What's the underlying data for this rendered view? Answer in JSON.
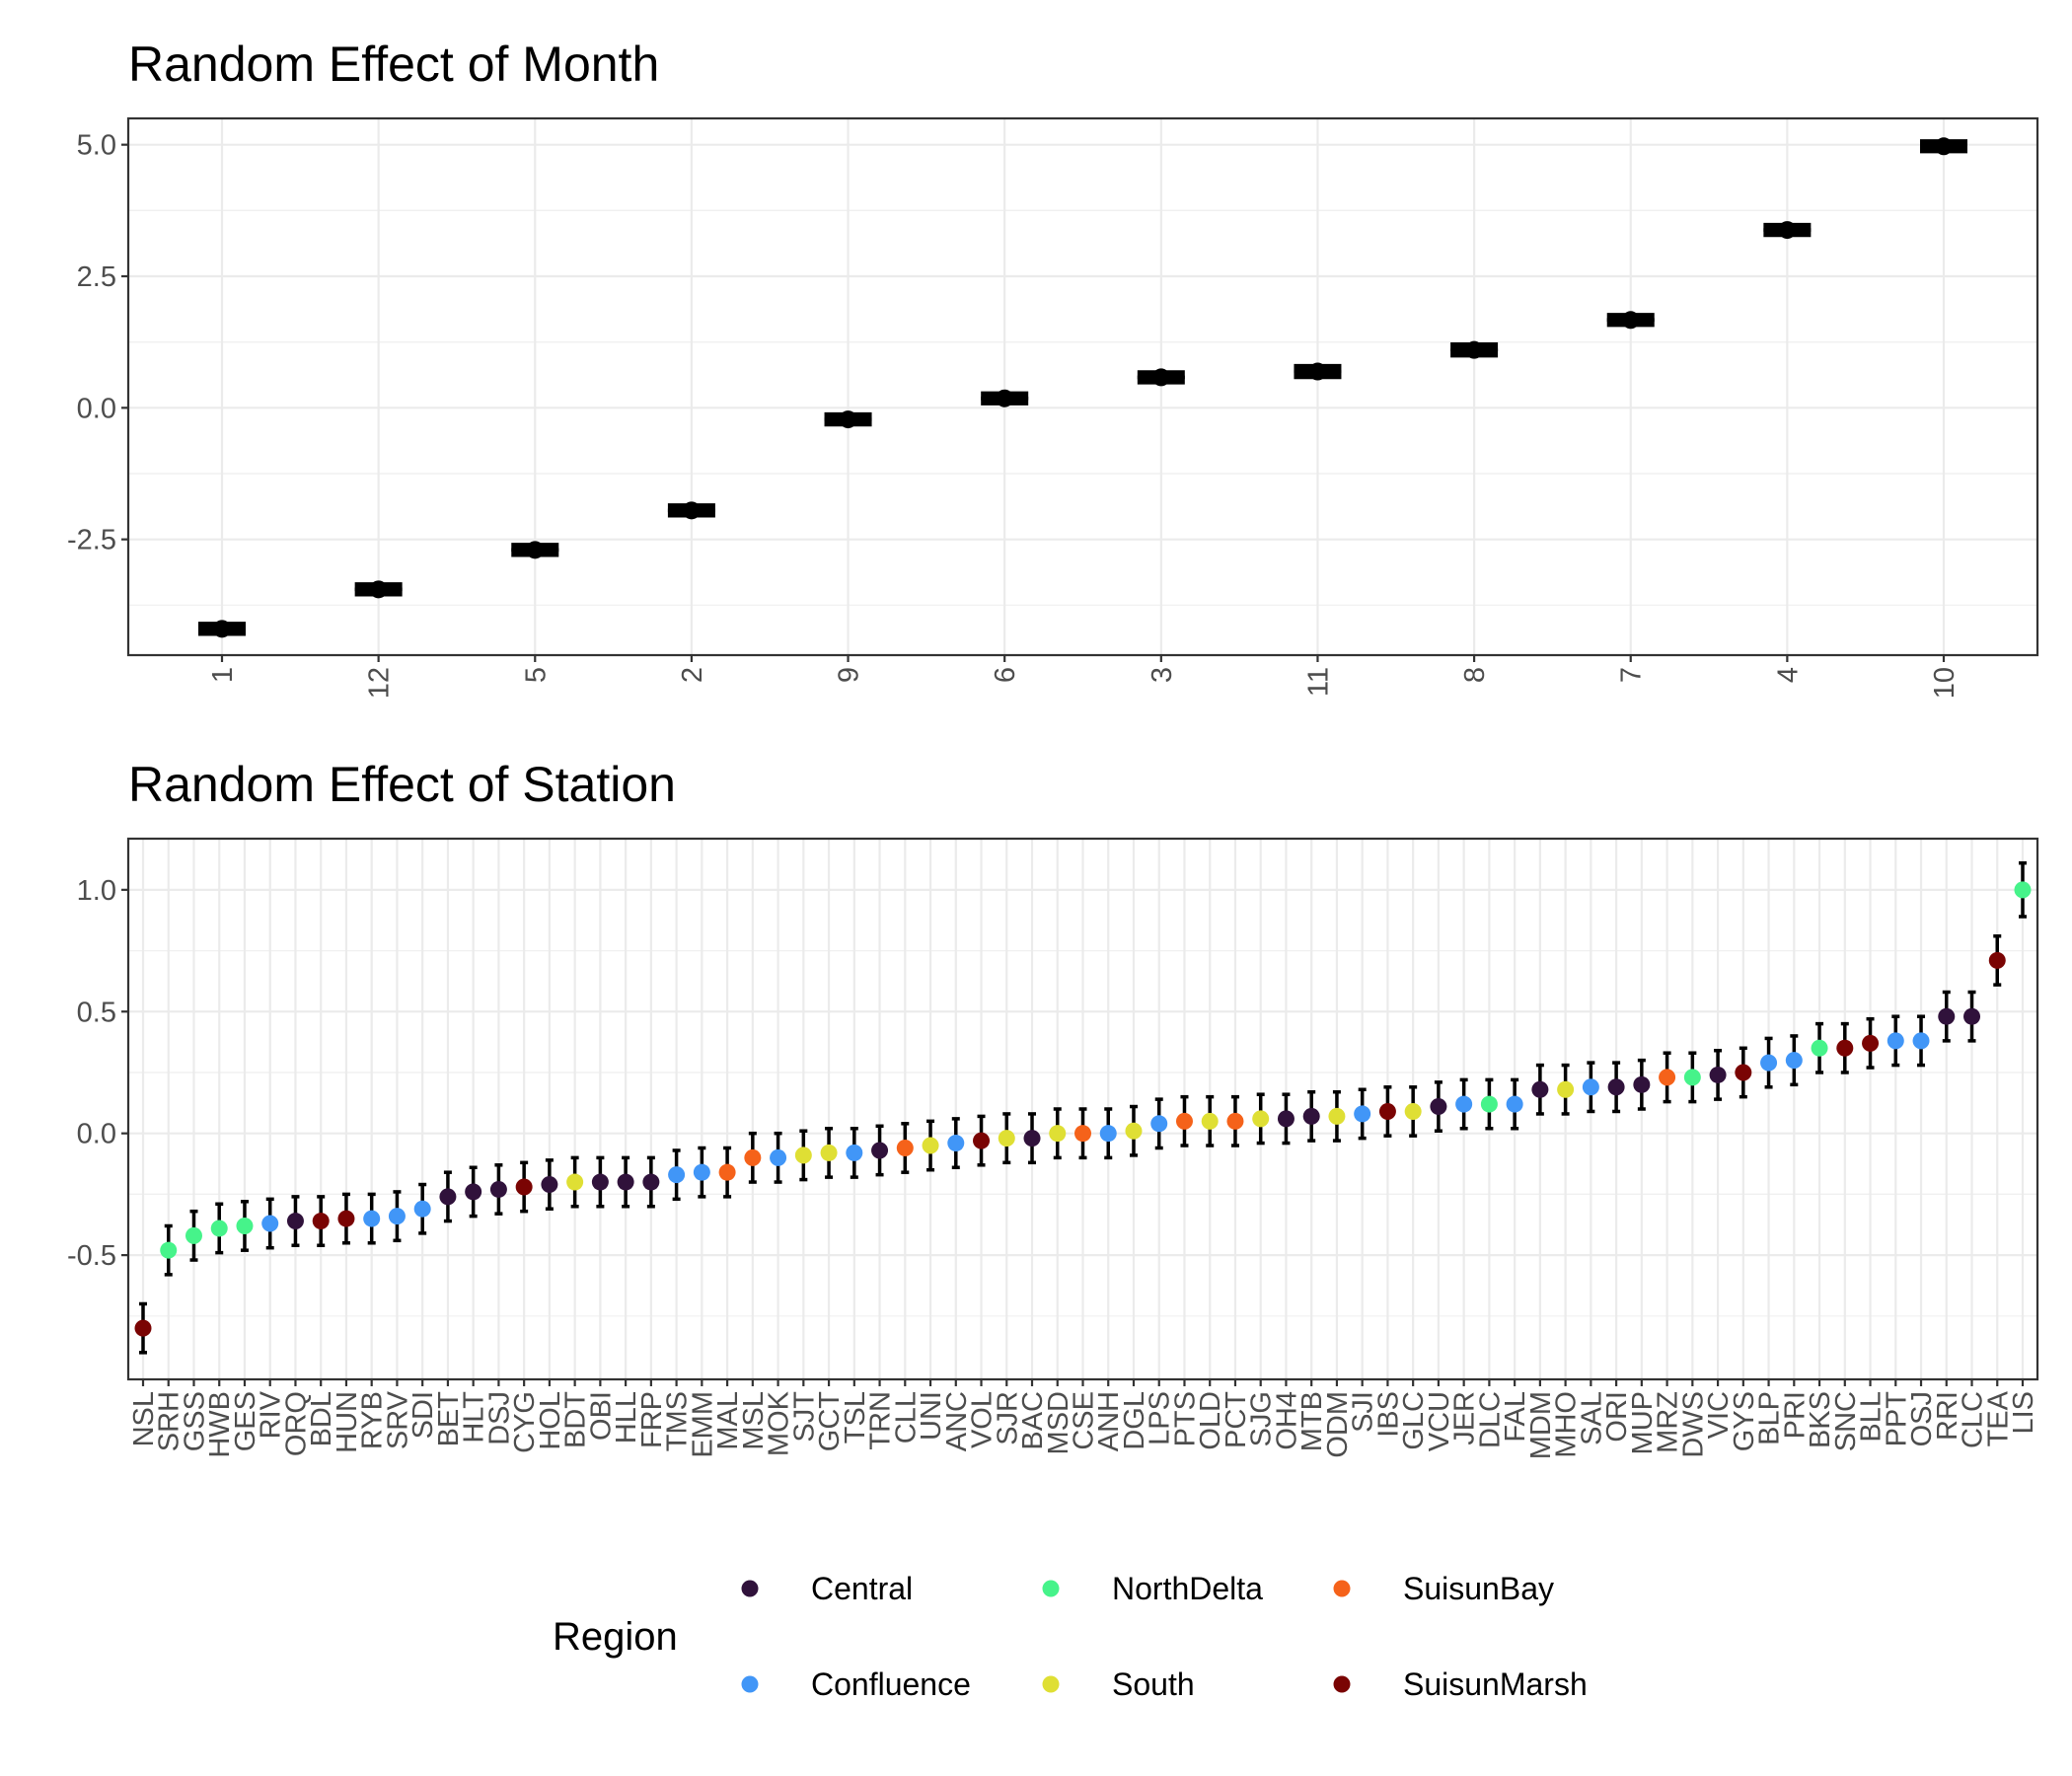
{
  "chart_data": [
    {
      "type": "scatter",
      "title": "Random Effect of Month",
      "xlabel": "",
      "ylabel": "",
      "ylim": [
        -4.7,
        5.5
      ],
      "yticks": [
        -2.5,
        0.0,
        2.5,
        5.0
      ],
      "ytick_labels": [
        "-2.5",
        "0.0",
        "2.5",
        "5.0"
      ],
      "grid": true,
      "categories": [
        "1",
        "12",
        "5",
        "2",
        "9",
        "6",
        "3",
        "11",
        "8",
        "7",
        "4",
        "10"
      ],
      "values": [
        -4.2,
        -3.45,
        -2.7,
        -1.95,
        -0.22,
        0.18,
        0.58,
        0.69,
        1.1,
        1.67,
        3.38,
        4.97
      ],
      "lower": [
        -4.25,
        -3.5,
        -2.75,
        -2.0,
        -0.27,
        0.13,
        0.53,
        0.63,
        1.04,
        1.62,
        3.33,
        4.92
      ],
      "upper": [
        -4.15,
        -3.4,
        -2.65,
        -1.9,
        -0.17,
        0.23,
        0.63,
        0.75,
        1.16,
        1.72,
        3.43,
        5.02
      ],
      "color": "#000000"
    },
    {
      "type": "scatter",
      "title": "Random Effect of Station",
      "xlabel": "",
      "ylabel": "",
      "ylim": [
        -1.01,
        1.21
      ],
      "yticks": [
        -0.5,
        0.0,
        0.5,
        1.0
      ],
      "ytick_labels": [
        "-0.5",
        "0.0",
        "0.5",
        "1.0"
      ],
      "grid": true,
      "categories": [
        "NSL",
        "SRH",
        "GSS",
        "HWB",
        "GES",
        "RIV",
        "ORQ",
        "BDL",
        "HUN",
        "RYB",
        "SRV",
        "SDI",
        "BET",
        "HLT",
        "DSJ",
        "CYG",
        "HOL",
        "BDT",
        "OBI",
        "HLL",
        "FRP",
        "TMS",
        "EMM",
        "MAL",
        "MSL",
        "MOK",
        "SJT",
        "GCT",
        "TSL",
        "TRN",
        "CLL",
        "UNI",
        "ANC",
        "VOL",
        "SJR",
        "BAC",
        "MSD",
        "CSE",
        "ANH",
        "DGL",
        "LPS",
        "PTS",
        "OLD",
        "PCT",
        "SJG",
        "OH4",
        "MTB",
        "ODM",
        "SJI",
        "IBS",
        "GLC",
        "VCU",
        "JER",
        "DLC",
        "FAL",
        "MDM",
        "MHO",
        "SAL",
        "ORI",
        "MUP",
        "MRZ",
        "DWS",
        "VIC",
        "GYS",
        "BLP",
        "PRI",
        "BKS",
        "SNC",
        "BLL",
        "PPT",
        "OSJ",
        "RRI",
        "CLC",
        "TEA",
        "LIS"
      ],
      "values": [
        -0.8,
        -0.48,
        -0.42,
        -0.39,
        -0.38,
        -0.37,
        -0.36,
        -0.36,
        -0.35,
        -0.35,
        -0.34,
        -0.31,
        -0.26,
        -0.24,
        -0.23,
        -0.22,
        -0.21,
        -0.2,
        -0.2,
        -0.2,
        -0.2,
        -0.17,
        -0.16,
        -0.16,
        -0.1,
        -0.1,
        -0.09,
        -0.08,
        -0.08,
        -0.07,
        -0.06,
        -0.05,
        -0.04,
        -0.03,
        -0.02,
        -0.02,
        0.0,
        0.0,
        0.0,
        0.01,
        0.04,
        0.05,
        0.05,
        0.05,
        0.06,
        0.06,
        0.07,
        0.07,
        0.08,
        0.09,
        0.09,
        0.11,
        0.12,
        0.12,
        0.12,
        0.18,
        0.18,
        0.19,
        0.19,
        0.2,
        0.23,
        0.23,
        0.24,
        0.25,
        0.29,
        0.3,
        0.35,
        0.35,
        0.37,
        0.38,
        0.38,
        0.48,
        0.48,
        0.71,
        1.0
      ],
      "lower": [
        -0.9,
        -0.58,
        -0.52,
        -0.49,
        -0.48,
        -0.47,
        -0.46,
        -0.46,
        -0.45,
        -0.45,
        -0.44,
        -0.41,
        -0.36,
        -0.34,
        -0.33,
        -0.32,
        -0.31,
        -0.3,
        -0.3,
        -0.3,
        -0.3,
        -0.27,
        -0.26,
        -0.26,
        -0.2,
        -0.2,
        -0.19,
        -0.18,
        -0.18,
        -0.17,
        -0.16,
        -0.15,
        -0.14,
        -0.13,
        -0.12,
        -0.12,
        -0.1,
        -0.1,
        -0.1,
        -0.09,
        -0.06,
        -0.05,
        -0.05,
        -0.05,
        -0.04,
        -0.04,
        -0.03,
        -0.03,
        -0.02,
        -0.01,
        -0.01,
        0.01,
        0.02,
        0.02,
        0.02,
        0.08,
        0.08,
        0.09,
        0.09,
        0.1,
        0.13,
        0.13,
        0.14,
        0.15,
        0.19,
        0.2,
        0.25,
        0.25,
        0.27,
        0.28,
        0.28,
        0.38,
        0.38,
        0.61,
        0.89
      ],
      "upper": [
        -0.7,
        -0.38,
        -0.32,
        -0.29,
        -0.28,
        -0.27,
        -0.26,
        -0.26,
        -0.25,
        -0.25,
        -0.24,
        -0.21,
        -0.16,
        -0.14,
        -0.13,
        -0.12,
        -0.11,
        -0.1,
        -0.1,
        -0.1,
        -0.1,
        -0.07,
        -0.06,
        -0.06,
        0.0,
        0.0,
        0.01,
        0.02,
        0.02,
        0.03,
        0.04,
        0.05,
        0.06,
        0.07,
        0.08,
        0.08,
        0.1,
        0.1,
        0.1,
        0.11,
        0.14,
        0.15,
        0.15,
        0.15,
        0.16,
        0.16,
        0.17,
        0.17,
        0.18,
        0.19,
        0.19,
        0.21,
        0.22,
        0.22,
        0.22,
        0.28,
        0.28,
        0.29,
        0.29,
        0.3,
        0.33,
        0.33,
        0.34,
        0.35,
        0.39,
        0.4,
        0.45,
        0.45,
        0.47,
        0.48,
        0.48,
        0.58,
        0.58,
        0.81,
        1.11
      ],
      "region": [
        "SuisunMarsh",
        "NorthDelta",
        "NorthDelta",
        "NorthDelta",
        "NorthDelta",
        "Confluence",
        "Central",
        "SuisunMarsh",
        "SuisunMarsh",
        "Confluence",
        "Confluence",
        "Confluence",
        "Central",
        "Central",
        "Central",
        "SuisunMarsh",
        "Central",
        "South",
        "Central",
        "Central",
        "Central",
        "Confluence",
        "Confluence",
        "SuisunBay",
        "SuisunBay",
        "Confluence",
        "South",
        "South",
        "Confluence",
        "Central",
        "SuisunBay",
        "South",
        "Confluence",
        "SuisunMarsh",
        "South",
        "Central",
        "South",
        "SuisunBay",
        "Confluence",
        "South",
        "Confluence",
        "SuisunBay",
        "South",
        "SuisunBay",
        "South",
        "Central",
        "Central",
        "South",
        "Confluence",
        "SuisunMarsh",
        "South",
        "Central",
        "Confluence",
        "NorthDelta",
        "Confluence",
        "Central",
        "South",
        "Confluence",
        "Central",
        "Central",
        "SuisunBay",
        "NorthDelta",
        "Central",
        "SuisunMarsh",
        "Confluence",
        "Confluence",
        "NorthDelta",
        "SuisunMarsh",
        "SuisunMarsh",
        "Confluence",
        "Confluence",
        "Central",
        "Central",
        "SuisunMarsh",
        "NorthDelta"
      ],
      "legend": {
        "title": "Region",
        "placement": "bottom",
        "entries": [
          {
            "name": "Central",
            "color": "#30123b"
          },
          {
            "name": "Confluence",
            "color": "#4196f7"
          },
          {
            "name": "NorthDelta",
            "color": "#46f38a"
          },
          {
            "name": "South",
            "color": "#dfdf34"
          },
          {
            "name": "SuisunBay",
            "color": "#f5621a"
          },
          {
            "name": "SuisunMarsh",
            "color": "#7a0403"
          }
        ]
      }
    }
  ]
}
